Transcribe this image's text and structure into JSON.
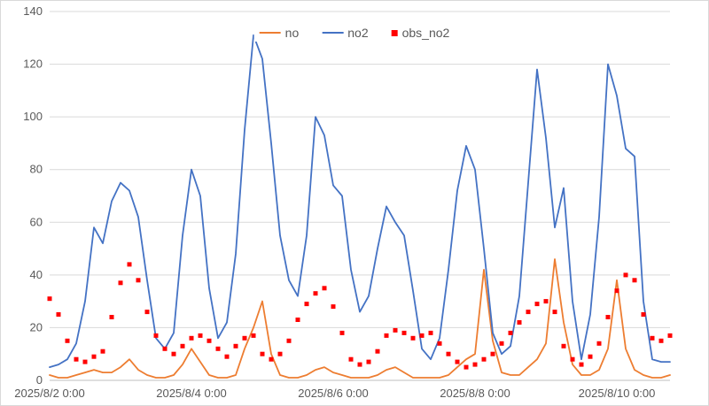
{
  "chart": {
    "legend": [
      {
        "label": "no",
        "color": "#ED7D31",
        "marker": "line"
      },
      {
        "label": "no2",
        "color": "#4472C4",
        "marker": "line"
      },
      {
        "label": "obs_no2",
        "color": "#FF0000",
        "marker": "square"
      }
    ],
    "grid_color": "#D9D9D9",
    "axis_color": "#BFBFBF",
    "text_color": "#595959"
  },
  "chart_data": {
    "type": "line",
    "title": "",
    "xlabel": "",
    "ylabel": "",
    "ylim": [
      0,
      140
    ],
    "y_ticks": [
      0,
      20,
      40,
      60,
      80,
      100,
      120,
      140
    ],
    "x_tick_labels": [
      "2025/8/2 0:00",
      "2025/8/4 0:00",
      "2025/8/6 0:00",
      "2025/8/8 0:00",
      "2025/8/10 0:00"
    ],
    "x_tick_hours": [
      0,
      48,
      96,
      144,
      192
    ],
    "x_unit": "hours since 2025/8/2 0:00",
    "x_hours": [
      0,
      3,
      6,
      9,
      12,
      15,
      18,
      21,
      24,
      27,
      30,
      33,
      36,
      39,
      42,
      45,
      48,
      51,
      54,
      57,
      60,
      63,
      66,
      69,
      72,
      75,
      78,
      81,
      84,
      87,
      90,
      93,
      96,
      99,
      102,
      105,
      108,
      111,
      114,
      117,
      120,
      123,
      126,
      129,
      132,
      135,
      138,
      141,
      144,
      147,
      150,
      153,
      156,
      159,
      162,
      165,
      168,
      171,
      174,
      177,
      180,
      183,
      186,
      189,
      192,
      195,
      198,
      201,
      204,
      207,
      210
    ],
    "grid": true,
    "legend_position": "top-center",
    "series": [
      {
        "name": "no",
        "type": "line",
        "color": "#ED7D31",
        "values": [
          2,
          1,
          1,
          2,
          3,
          4,
          3,
          3,
          5,
          8,
          4,
          2,
          1,
          1,
          2,
          6,
          12,
          7,
          2,
          1,
          1,
          2,
          12,
          20,
          30,
          10,
          2,
          1,
          1,
          2,
          4,
          5,
          3,
          2,
          1,
          1,
          1,
          2,
          4,
          5,
          3,
          1,
          1,
          1,
          1,
          2,
          5,
          8,
          10,
          42,
          15,
          3,
          2,
          2,
          5,
          8,
          14,
          46,
          22,
          6,
          2,
          2,
          4,
          12,
          38,
          12,
          4,
          2,
          1,
          1,
          2
        ]
      },
      {
        "name": "no2",
        "type": "line",
        "color": "#4472C4",
        "values": [
          5,
          6,
          8,
          14,
          30,
          58,
          52,
          68,
          75,
          72,
          62,
          38,
          16,
          12,
          18,
          55,
          80,
          70,
          35,
          16,
          22,
          48,
          95,
          131,
          122,
          90,
          55,
          38,
          32,
          55,
          100,
          93,
          74,
          70,
          42,
          26,
          32,
          50,
          66,
          60,
          55,
          34,
          12,
          8,
          16,
          42,
          72,
          89,
          80,
          50,
          18,
          10,
          13,
          32,
          75,
          118,
          92,
          58,
          73,
          30,
          8,
          25,
          62,
          120,
          108,
          88,
          85,
          30,
          8,
          7,
          7
        ]
      },
      {
        "name": "obs_no2",
        "type": "scatter",
        "color": "#FF0000",
        "values": [
          31,
          25,
          15,
          8,
          7,
          9,
          11,
          24,
          37,
          44,
          38,
          26,
          17,
          12,
          10,
          13,
          16,
          17,
          15,
          12,
          9,
          13,
          16,
          17,
          10,
          8,
          10,
          15,
          23,
          29,
          33,
          35,
          28,
          18,
          8,
          6,
          7,
          11,
          17,
          19,
          18,
          16,
          17,
          18,
          14,
          10,
          7,
          5,
          6,
          8,
          10,
          14,
          18,
          22,
          26,
          29,
          30,
          26,
          13,
          8,
          6,
          9,
          14,
          24,
          34,
          40,
          38,
          25,
          16,
          15,
          17
        ]
      }
    ]
  }
}
